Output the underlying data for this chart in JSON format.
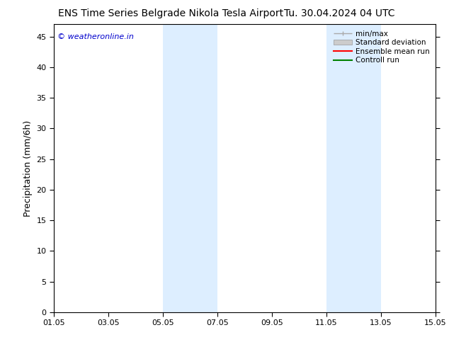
{
  "title_left": "ENS Time Series Belgrade Nikola Tesla Airport",
  "title_right": "Tu. 30.04.2024 04 UTC",
  "ylabel": "Precipitation (mm/6h)",
  "watermark": "© weatheronline.in",
  "watermark_color": "#0000cc",
  "ylim": [
    0,
    47
  ],
  "yticks": [
    0,
    5,
    10,
    15,
    20,
    25,
    30,
    35,
    40,
    45
  ],
  "xtick_labels": [
    "01.05",
    "03.05",
    "05.05",
    "07.05",
    "09.05",
    "11.05",
    "13.05",
    "15.05"
  ],
  "xtick_positions": [
    0,
    2,
    4,
    6,
    8,
    10,
    12,
    14
  ],
  "xlim": [
    0,
    14
  ],
  "shaded_regions": [
    {
      "xmin": 4.0,
      "xmax": 6.0,
      "color": "#ddeeff",
      "alpha": 1.0
    },
    {
      "xmin": 10.0,
      "xmax": 12.0,
      "color": "#ddeeff",
      "alpha": 1.0
    }
  ],
  "background_color": "#ffffff",
  "plot_bg_color": "#ffffff",
  "legend_labels": [
    "min/max",
    "Standard deviation",
    "Ensemble mean run",
    "Controll run"
  ],
  "legend_minmax_color": "#aaaaaa",
  "legend_std_color": "#cccccc",
  "legend_ens_color": "#ff0000",
  "legend_ctrl_color": "#008000",
  "title_fontsize": 10,
  "axis_label_fontsize": 9,
  "tick_fontsize": 8,
  "legend_fontsize": 7.5,
  "watermark_fontsize": 8
}
